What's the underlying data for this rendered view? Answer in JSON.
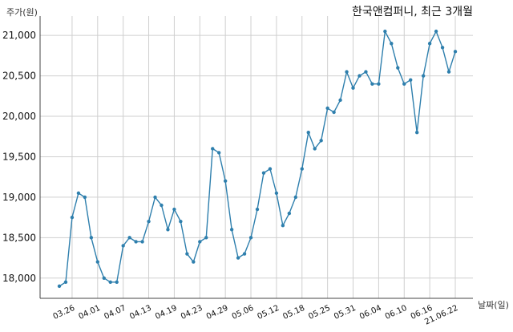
{
  "chart_data": {
    "type": "line",
    "title": "한국앤컴퍼니, 최근 3개월",
    "ylabel": "주가(원)",
    "xlabel": "날짜(일)",
    "ylim": [
      17750,
      21200
    ],
    "yticks": [
      18000,
      18500,
      19000,
      19500,
      20000,
      20500,
      21000
    ],
    "ytick_labels": [
      "18,000",
      "18,500",
      "19,000",
      "19,500",
      "20,000",
      "20,500",
      "21,000"
    ],
    "xtick_labels": [
      {
        "label": "03.26",
        "index": 2
      },
      {
        "label": "04.01",
        "index": 6
      },
      {
        "label": "04.07",
        "index": 10
      },
      {
        "label": "04.13",
        "index": 14
      },
      {
        "label": "04.19",
        "index": 18
      },
      {
        "label": "04.23",
        "index": 22
      },
      {
        "label": "04.29",
        "index": 26
      },
      {
        "label": "05.06",
        "index": 30
      },
      {
        "label": "05.12",
        "index": 34
      },
      {
        "label": "05.18",
        "index": 38
      },
      {
        "label": "05.25",
        "index": 42
      },
      {
        "label": "05.31",
        "index": 46
      },
      {
        "label": "06.04",
        "index": 50
      },
      {
        "label": "06.10",
        "index": 54
      },
      {
        "label": "06.16",
        "index": 58
      },
      {
        "label": "21.06.22",
        "index": 62
      }
    ],
    "grid": true,
    "color": "#2e7fad",
    "series": [
      {
        "values": [
          17900,
          17950,
          18750,
          19050,
          19000,
          18500,
          18200,
          18000,
          17950,
          17950,
          18400,
          18500,
          18450,
          18450,
          18700,
          19000,
          18900,
          18600,
          18850,
          18700,
          18300,
          18200,
          18450,
          18500,
          19600,
          19550,
          19200,
          18600,
          18250,
          18300,
          18500,
          18850,
          19300,
          19350,
          19050,
          18650,
          18800,
          19000,
          19350,
          19800,
          19600,
          19700,
          20100,
          20050,
          20200,
          20550,
          20350,
          20500,
          20550,
          20400,
          20400,
          21050,
          20900,
          20600,
          20400,
          20450,
          19800,
          20500,
          20900,
          21050,
          20850,
          20550,
          20800
        ]
      }
    ]
  }
}
